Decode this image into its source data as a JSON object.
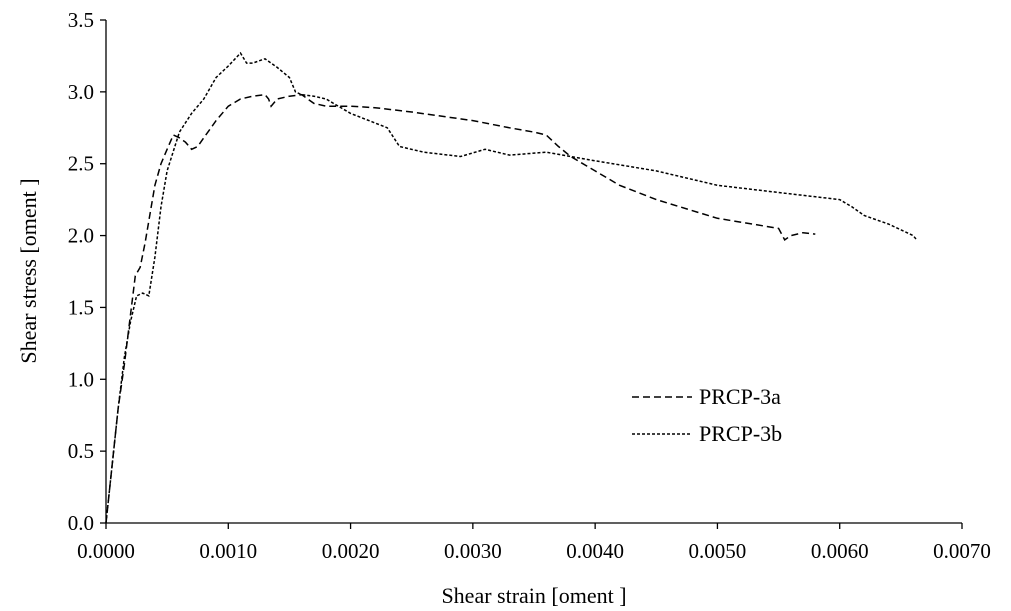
{
  "chart_data": {
    "type": "line",
    "title": "",
    "xlabel": "Shear strain [oment ]",
    "ylabel": "Shear stress [oment ]",
    "xlim": [
      0,
      0.007
    ],
    "ylim": [
      0,
      3.5
    ],
    "x_ticks": [
      "0.0000",
      "0.0010",
      "0.0020",
      "0.0030",
      "0.0040",
      "0.0050",
      "0.0060",
      "0.0070"
    ],
    "y_ticks": [
      "0.0",
      "0.5",
      "1.0",
      "1.5",
      "2.0",
      "2.5",
      "3.0",
      "3.5"
    ],
    "grid": false,
    "legend": "center-right",
    "series": [
      {
        "name": "PRCP-3a",
        "dash": "long",
        "x": [
          0.0,
          5e-05,
          0.0001,
          0.00015,
          0.0002,
          0.00024,
          0.00028,
          0.00032,
          0.00036,
          0.0004,
          0.00045,
          0.0005,
          0.00055,
          0.0006,
          0.00065,
          0.0007,
          0.00075,
          0.0008,
          0.0009,
          0.001,
          0.0011,
          0.0012,
          0.0013,
          0.00133,
          0.00135,
          0.0014,
          0.0015,
          0.0016,
          0.0017,
          0.0018,
          0.002,
          0.0022,
          0.0025,
          0.003,
          0.0033,
          0.0035,
          0.0036,
          0.0037,
          0.0038,
          0.004,
          0.0042,
          0.0045,
          0.005,
          0.0055,
          0.00555,
          0.0056,
          0.0057,
          0.0058
        ],
        "values": [
          0.0,
          0.4,
          0.8,
          1.1,
          1.45,
          1.72,
          1.78,
          1.95,
          2.15,
          2.35,
          2.5,
          2.6,
          2.7,
          2.68,
          2.65,
          2.6,
          2.62,
          2.68,
          2.8,
          2.9,
          2.95,
          2.97,
          2.98,
          2.95,
          2.9,
          2.95,
          2.97,
          2.98,
          2.92,
          2.9,
          2.9,
          2.89,
          2.86,
          2.8,
          2.75,
          2.72,
          2.7,
          2.62,
          2.55,
          2.45,
          2.35,
          2.25,
          2.12,
          2.05,
          1.97,
          2.0,
          2.02,
          2.01
        ]
      },
      {
        "name": "PRCP-3b",
        "dash": "short",
        "x": [
          0.0,
          5e-05,
          0.0001,
          0.00015,
          0.0002,
          0.00025,
          0.0003,
          0.00035,
          0.0004,
          0.00045,
          0.0005,
          0.0006,
          0.0007,
          0.0008,
          0.0009,
          0.001,
          0.0011,
          0.00115,
          0.0012,
          0.0013,
          0.0014,
          0.0015,
          0.00155,
          0.0016,
          0.0017,
          0.0018,
          0.002,
          0.0023,
          0.0024,
          0.0026,
          0.0029,
          0.0031,
          0.0033,
          0.0036,
          0.004,
          0.0045,
          0.005,
          0.0055,
          0.006,
          0.0061,
          0.0062,
          0.0064,
          0.0066,
          0.00663
        ],
        "values": [
          0.0,
          0.4,
          0.8,
          1.15,
          1.4,
          1.58,
          1.6,
          1.58,
          1.85,
          2.2,
          2.45,
          2.72,
          2.85,
          2.95,
          3.1,
          3.18,
          3.27,
          3.2,
          3.2,
          3.23,
          3.17,
          3.1,
          3.0,
          2.98,
          2.97,
          2.95,
          2.85,
          2.75,
          2.62,
          2.58,
          2.55,
          2.6,
          2.56,
          2.58,
          2.52,
          2.45,
          2.35,
          2.3,
          2.25,
          2.2,
          2.14,
          2.08,
          2.0,
          1.97
        ]
      }
    ]
  }
}
